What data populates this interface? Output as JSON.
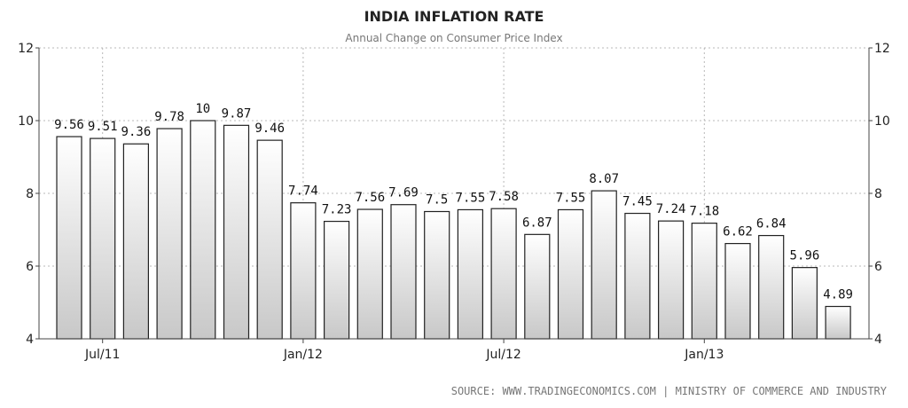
{
  "chart_data": {
    "type": "bar",
    "title": "INDIA INFLATION RATE",
    "subtitle": "Annual Change on Consumer Price Index",
    "source": "SOURCE: WWW.TRADINGECONOMICS.COM | MINISTRY OF COMMERCE AND INDUSTRY",
    "values": [
      9.56,
      9.51,
      9.36,
      9.78,
      10,
      9.87,
      9.46,
      7.74,
      7.23,
      7.56,
      7.69,
      7.5,
      7.55,
      7.58,
      6.87,
      7.55,
      8.07,
      7.45,
      7.24,
      7.18,
      6.62,
      6.84,
      5.96,
      4.89
    ],
    "data_labels": [
      "9.56",
      "9.51",
      "9.36",
      "9.78",
      "10",
      "9.87",
      "9.46",
      "7.74",
      "7.23",
      "7.56",
      "7.69",
      "7.5",
      "7.55",
      "7.58",
      "6.87",
      "7.55",
      "8.07",
      "7.45",
      "7.24",
      "7.18",
      "6.62",
      "6.84",
      "5.96",
      "4.89"
    ],
    "x_ticks": [
      {
        "label": "Jul/11",
        "index": 1
      },
      {
        "label": "Jan/12",
        "index": 7
      },
      {
        "label": "Jul/12",
        "index": 13
      },
      {
        "label": "Jan/13",
        "index": 19
      }
    ],
    "y_ticks": [
      "4",
      "6",
      "8",
      "10",
      "12"
    ],
    "ylim": [
      4,
      12
    ],
    "xlabel": "",
    "ylabel": "",
    "grid": true,
    "bar_fill_top": "#ffffff",
    "bar_fill_bottom": "#c8c8c8"
  }
}
